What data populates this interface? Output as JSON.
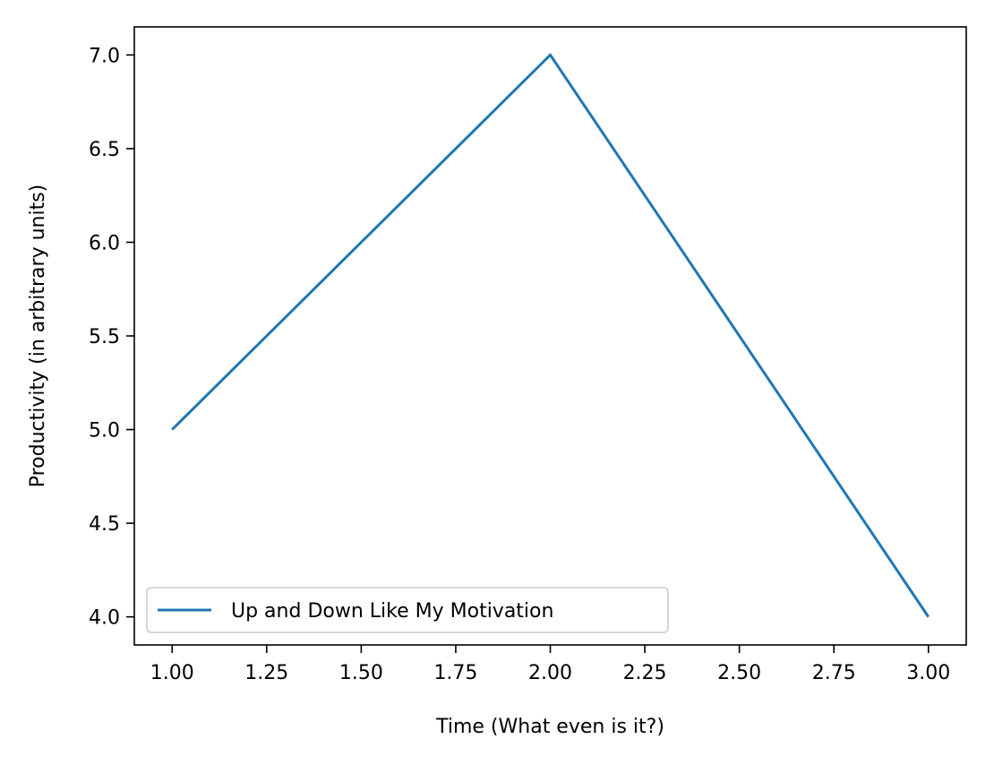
{
  "chart_data": {
    "type": "line",
    "title": "",
    "xlabel": "Time (What even is it?)",
    "ylabel": "Productivity (in arbitrary units)",
    "x": [
      1,
      2,
      3
    ],
    "series": [
      {
        "name": "Up and Down Like My Motivation",
        "values": [
          5,
          7,
          4
        ],
        "color": "#1f77b4"
      }
    ],
    "xlim": [
      0.9,
      3.1
    ],
    "ylim": [
      3.85,
      7.15
    ],
    "xticks": [
      1.0,
      1.25,
      1.5,
      1.75,
      2.0,
      2.25,
      2.5,
      2.75,
      3.0
    ],
    "xtick_labels": [
      "1.00",
      "1.25",
      "1.50",
      "1.75",
      "2.00",
      "2.25",
      "2.50",
      "2.75",
      "3.00"
    ],
    "yticks": [
      4.0,
      4.5,
      5.0,
      5.5,
      6.0,
      6.5,
      7.0
    ],
    "ytick_labels": [
      "4.0",
      "4.5",
      "5.0",
      "5.5",
      "6.0",
      "6.5",
      "7.0"
    ],
    "grid": false,
    "legend_position": "lower-left"
  }
}
